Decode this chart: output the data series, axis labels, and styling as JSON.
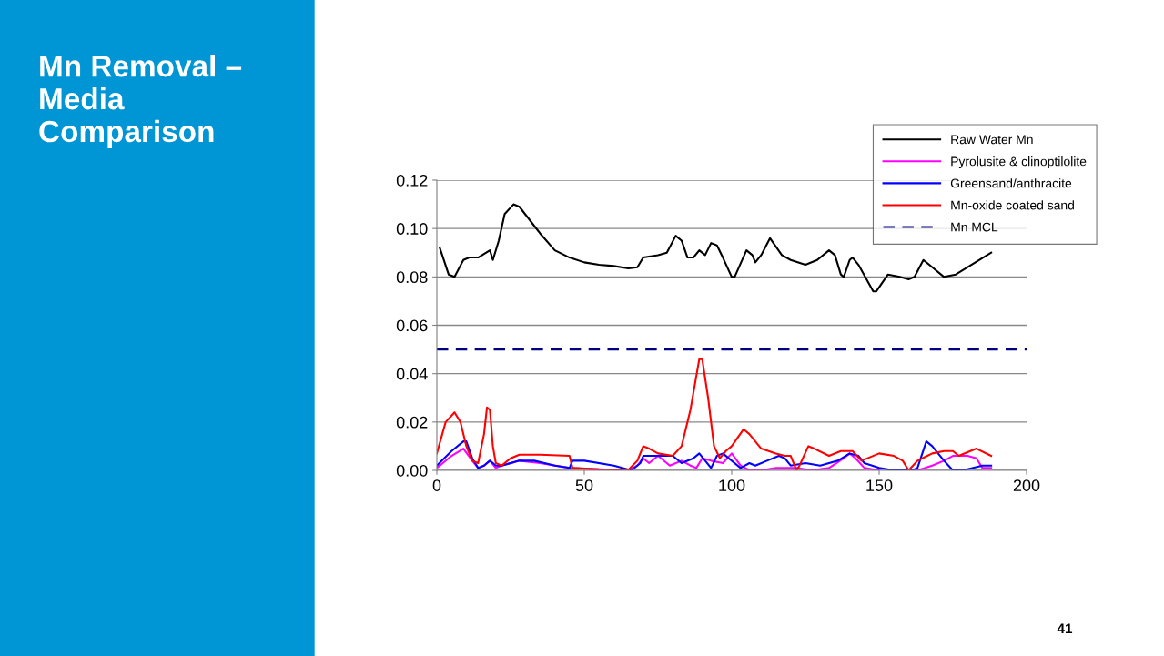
{
  "chart_data": {
    "type": "line",
    "title": "Mn Removal – Media Comparison",
    "annotations": [
      "41"
    ],
    "xlim": [
      0,
      200
    ],
    "xticks": [
      0,
      50,
      100,
      150,
      200
    ],
    "ylim": [
      0,
      0.12
    ],
    "yticks": [
      {
        "value": 0,
        "label": "0.00"
      },
      {
        "value": 0.02,
        "label": "0.02"
      },
      {
        "value": 0.04,
        "label": "0.04"
      },
      {
        "value": 0.06,
        "label": "0.06"
      },
      {
        "value": 0.08,
        "label": "0.08"
      },
      {
        "value": 0.1,
        "label": "0.10"
      },
      {
        "value": 0.12,
        "label": "0.12"
      }
    ],
    "grid": "y",
    "legend": "top right",
    "marker": "none",
    "line_style": "solid",
    "series": [
      {
        "name": "Raw Water Mn",
        "color": "#000000",
        "x": [
          1,
          4,
          6,
          9,
          11,
          14,
          18,
          19,
          21,
          23,
          26,
          28,
          35,
          40,
          45,
          50,
          55,
          60,
          65,
          68,
          70,
          75,
          78,
          81,
          83,
          85,
          87,
          89,
          91,
          93,
          95,
          97,
          100,
          101,
          105,
          107,
          108,
          110,
          113,
          117,
          120,
          125,
          129,
          133,
          135,
          137,
          138,
          140,
          141,
          143,
          148,
          149,
          153,
          157,
          160,
          162,
          165,
          167,
          172,
          176,
          188
        ],
        "values": [
          0.092,
          0.081,
          0.08,
          0.087,
          0.088,
          0.088,
          0.091,
          0.087,
          0.095,
          0.106,
          0.11,
          0.109,
          0.098,
          0.091,
          0.088,
          0.086,
          0.085,
          0.0845,
          0.0835,
          0.084,
          0.088,
          0.089,
          0.09,
          0.097,
          0.095,
          0.088,
          0.088,
          0.091,
          0.089,
          0.094,
          0.093,
          0.088,
          0.08,
          0.08,
          0.091,
          0.089,
          0.086,
          0.089,
          0.096,
          0.089,
          0.087,
          0.085,
          0.087,
          0.091,
          0.089,
          0.081,
          0.08,
          0.087,
          0.088,
          0.085,
          0.074,
          0.074,
          0.081,
          0.08,
          0.079,
          0.08,
          0.087,
          0.085,
          0.08,
          0.081,
          0.09
        ]
      },
      {
        "name": "Pyrolusite & clinoptilolite",
        "color": "#ff00ff",
        "x": [
          0,
          5,
          9,
          12,
          14,
          16,
          18,
          20,
          22,
          28,
          35,
          45,
          55,
          65,
          68,
          70,
          72,
          75,
          79,
          83,
          86,
          88,
          90,
          93,
          97,
          100,
          103,
          106,
          110,
          115,
          120,
          122,
          127,
          133,
          138,
          140,
          142,
          145,
          150,
          160,
          163,
          168,
          172,
          175,
          180,
          183,
          185,
          188
        ],
        "values": [
          0.001,
          0.006,
          0.009,
          0.004,
          0.001,
          0.002,
          0.004,
          0.001,
          0.002,
          0.004,
          0.003,
          0.001,
          0.0005,
          0.0,
          0.002,
          0.005,
          0.003,
          0.006,
          0.002,
          0.004,
          0.002,
          0.001,
          0.005,
          0.004,
          0.003,
          0.007,
          0.002,
          0.0,
          0.0,
          0.001,
          0.001,
          0.001,
          0.0,
          0.001,
          0.005,
          0.007,
          0.005,
          0.001,
          0.0,
          null,
          0.0,
          0.002,
          0.004,
          0.006,
          0.006,
          0.005,
          0.001,
          0.001
        ]
      },
      {
        "name": "Greensand/anthracite",
        "color": "#0000ff",
        "x": [
          0,
          5,
          9,
          10,
          12,
          14,
          16,
          18,
          20,
          22,
          28,
          33,
          40,
          45,
          46,
          50,
          60,
          66,
          69,
          70,
          75,
          80,
          83,
          87,
          89,
          91,
          93,
          95,
          97,
          100,
          103,
          106,
          108,
          112,
          116,
          118,
          120,
          125,
          130,
          136,
          140,
          143,
          145,
          150,
          155,
          162,
          163,
          166,
          168,
          172,
          175,
          180,
          185,
          188
        ],
        "values": [
          0.002,
          0.008,
          0.012,
          0.012,
          0.005,
          0.001,
          0.002,
          0.004,
          0.002,
          0.002,
          0.004,
          0.004,
          0.002,
          0.001,
          0.004,
          0.004,
          0.002,
          0.0,
          0.003,
          0.006,
          0.006,
          0.006,
          0.003,
          0.005,
          0.007,
          0.004,
          0.001,
          0.006,
          0.007,
          0.004,
          0.001,
          0.003,
          0.002,
          0.004,
          0.006,
          0.005,
          0.002,
          0.003,
          0.002,
          0.004,
          0.007,
          0.006,
          0.003,
          0.001,
          0.0,
          0.0005,
          0.001,
          0.012,
          0.01,
          0.004,
          0.0,
          0.0005,
          0.002,
          0.002
        ]
      },
      {
        "name": "Mn-oxide coated sand",
        "color": "#ff0000",
        "x": [
          0,
          3,
          6,
          8,
          10,
          12,
          14,
          16,
          17,
          18,
          19,
          20,
          22,
          25,
          28,
          35,
          45,
          46,
          55,
          65,
          68,
          70,
          72,
          75,
          80,
          83,
          86,
          89,
          90,
          92,
          94,
          96,
          98,
          100,
          104,
          106,
          110,
          115,
          118,
          120,
          122,
          123,
          126,
          128,
          133,
          137,
          141,
          144,
          150,
          155,
          158,
          160,
          163,
          168,
          172,
          175,
          177,
          183,
          188
        ],
        "values": [
          0.007,
          0.02,
          0.024,
          0.02,
          0.01,
          0.004,
          0.003,
          0.015,
          0.026,
          0.025,
          0.01,
          0.003,
          0.002,
          0.005,
          0.0065,
          0.0065,
          0.006,
          0.001,
          0.0005,
          0.0003,
          0.004,
          0.01,
          0.009,
          0.007,
          0.006,
          0.01,
          0.025,
          0.046,
          0.046,
          0.03,
          0.01,
          0.005,
          0.008,
          0.01,
          0.017,
          0.015,
          0.009,
          0.007,
          0.006,
          0.006,
          0.0,
          0.002,
          0.01,
          0.009,
          0.006,
          0.008,
          0.008,
          0.004,
          0.007,
          0.006,
          0.004,
          0.0,
          0.004,
          0.007,
          0.008,
          0.008,
          0.006,
          0.009,
          0.006
        ]
      }
    ],
    "ref_lines": [
      {
        "axis": "y",
        "value": 0.05,
        "label": "Mn MCL",
        "color": "#000080",
        "line_style": "dashed"
      }
    ]
  }
}
